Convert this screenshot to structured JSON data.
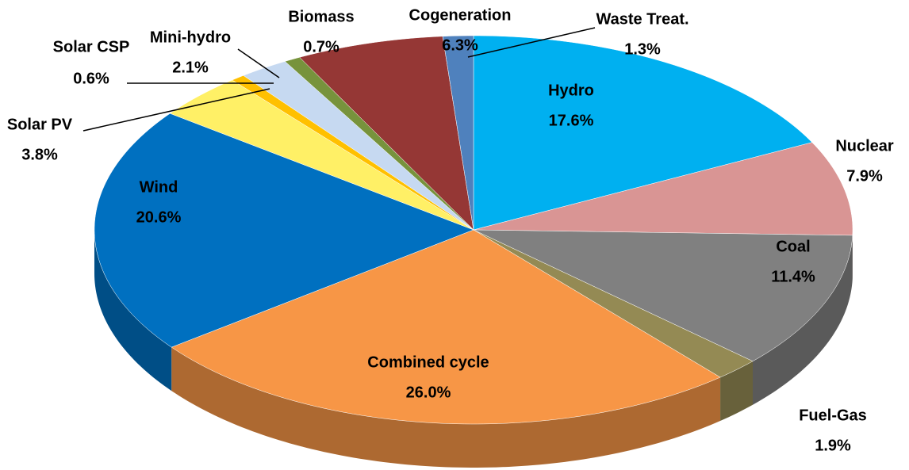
{
  "chart_data": {
    "type": "pie",
    "categories": [
      "Hydro",
      "Nuclear",
      "Coal",
      "Fuel-Gas",
      "Combined cycle",
      "Wind",
      "Solar PV",
      "Solar CSP",
      "Mini-hydro",
      "Biomass",
      "Cogeneration",
      "Waste Treat."
    ],
    "values": [
      17.6,
      7.9,
      11.4,
      1.9,
      26.0,
      20.6,
      3.8,
      0.6,
      2.1,
      0.7,
      6.3,
      1.3
    ],
    "value_labels": [
      "17.6%",
      "7.9%",
      "11.4%",
      "1.9%",
      "26.0%",
      "20.6%",
      "3.8%",
      "0.6%",
      "2.1%",
      "0.7%",
      "6.3%",
      "1.3%"
    ],
    "colors": [
      "#00b0f0",
      "#d99594",
      "#808080",
      "#948a54",
      "#f79646",
      "#0070c0",
      "#fff066",
      "#ffc000",
      "#c6d9f1",
      "#77933c",
      "#953735",
      "#4f81bd"
    ]
  }
}
